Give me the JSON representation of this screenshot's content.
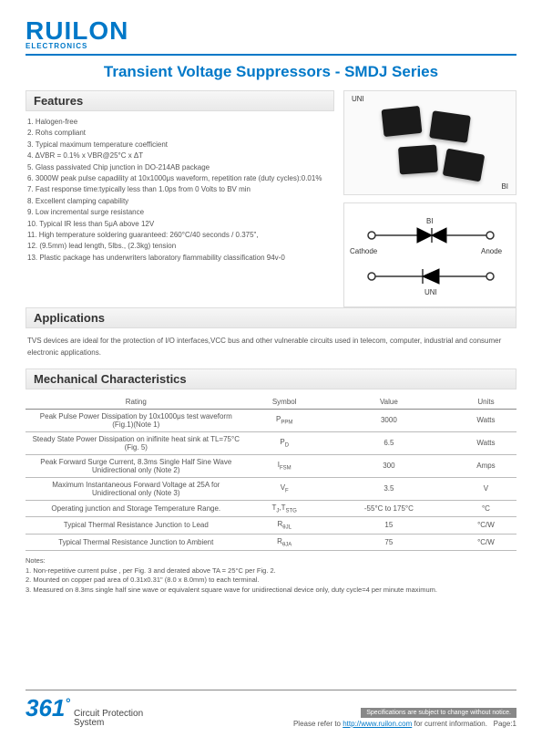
{
  "brand": {
    "name": "RUILON",
    "sub": "ELECTRONICS"
  },
  "title": "Transient Voltage Suppressors - SMDJ Series",
  "sections": {
    "features": "Features",
    "applications": "Applications",
    "mechanical": "Mechanical Characteristics"
  },
  "package_labels": {
    "uni": "UNI",
    "bi": "BI"
  },
  "features": [
    "1. Halogen-free",
    "2. Rohs compliant",
    "3. Typical maximum temperature coefficient",
    "4. ΔVBR = 0.1% x VBR@25°C x ΔT",
    "5. Glass passivated Chip junction in DO-214AB package",
    "6. 3000W peak pulse capadility at 10x1000μs waveform, repetition rate (duty cycles):0.01%",
    "7. Fast response time:typically less than 1.0ps from 0 Volts to BV min",
    "8. Excellent clamping capability",
    "9. Low incremental surge resistance",
    "10. Typical IR less than 5μA above 12V",
    "11. High temperature soldering guaranteed: 260°C/40 seconds / 0.375\",",
    "12. (9.5mm) lead length, 5lbs., (2.3kg) tension",
    "13. Plastic package has underwriters laboratory flammability classification 94v-0"
  ],
  "applications_text": "TVS devices are ideal for the protection of I/O interfaces,VCC bus and other vulnerable circuits used in telecom, computer, industrial and consumer electronic applications.",
  "diagram": {
    "cathode": "Cathode",
    "anode": "Anode",
    "bi": "BI",
    "uni": "UNI"
  },
  "mech": {
    "headers": [
      "Rating",
      "Symbol",
      "Value",
      "Units"
    ],
    "rows": [
      {
        "rating": "Peak Pulse Power Dissipation by 10x1000μs test waveform (Fig.1)(Note 1)",
        "symbol": "P<sub>PPM</sub>",
        "value": "3000",
        "units": "Watts"
      },
      {
        "rating": "Steady State Power Dissipation on inifinite heat sink at TL=75°C (Fig. 5)",
        "symbol": "P<sub>D</sub>",
        "value": "6.5",
        "units": "Watts"
      },
      {
        "rating": "Peak Forward Surge Current, 8.3ms Single Half Sine Wave Unidirectional only (Note 2)",
        "symbol": "I<sub>FSM</sub>",
        "value": "300",
        "units": "Amps"
      },
      {
        "rating": "Maximum Instantaneous Forward Voltage at 25A for Unidirectional only (Note 3)",
        "symbol": "V<sub>F</sub>",
        "value": "3.5",
        "units": "V"
      },
      {
        "rating": "Operating junction and Storage Temperature Range.",
        "symbol": "T<sub>J</sub>,T<sub>STG</sub>",
        "value": "-55°C to 175°C",
        "units": "°C"
      },
      {
        "rating": "Typical Thermal Resistance Junction to Lead",
        "symbol": "R<sub>θJL</sub>",
        "value": "15",
        "units": "°C/W"
      },
      {
        "rating": "Typical Thermal Resistance Junction to Ambient",
        "symbol": "R<sub>θJA</sub>",
        "value": "75",
        "units": "°C/W"
      }
    ]
  },
  "notes_title": "Notes:",
  "notes": [
    "1. Non-repetitive current pulse , per Fig. 3 and derated above TA = 25°C per Fig. 2.",
    "2. Mounted on copper pad area of 0.31x0.31\" (8.0 x 8.0mm) to each terminal.",
    "3. Measured on 8.3ms single half sine wave or equivalent square wave for unidirectional device only, duty cycle=4 per minute maximum."
  ],
  "footer": {
    "n361": "361",
    "cps1": "Circuit Protection",
    "cps2": "System",
    "spec": "Specifications are subject to change without notice.",
    "refer": "Please refer to ",
    "url": "http://www.ruilon.com",
    "for_info": " for current information.",
    "page": "Page:1"
  }
}
